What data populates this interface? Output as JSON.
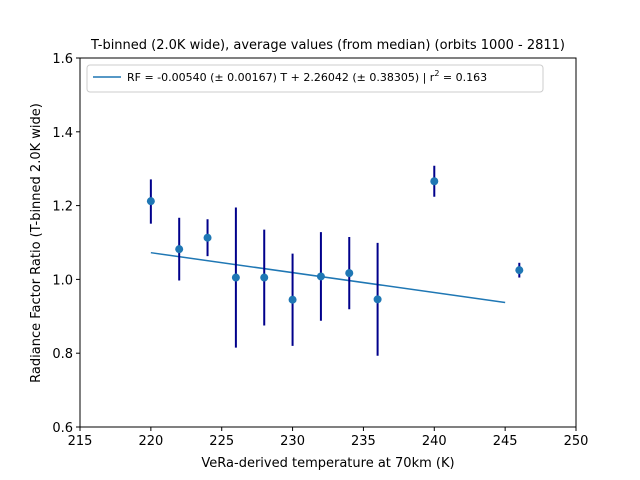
{
  "chart_data": {
    "type": "scatter",
    "title": "T-binned (2.0K wide), average values (from median) (orbits 1000 - 2811)",
    "xlabel": "VeRa-derived temperature at 70km (K)",
    "ylabel": "Radiance Factor Ratio (T-binned 2.0K wide)",
    "xlim": [
      215,
      250
    ],
    "ylim": [
      0.6,
      1.6
    ],
    "xticks": [
      215,
      220,
      225,
      230,
      235,
      240,
      245,
      250
    ],
    "yticks": [
      0.6,
      0.8,
      1.0,
      1.2,
      1.4,
      1.6
    ],
    "xtick_labels": [
      "215",
      "220",
      "225",
      "230",
      "235",
      "240",
      "245",
      "250"
    ],
    "ytick_labels": [
      "0.6",
      "0.8",
      "1.0",
      "1.2",
      "1.4",
      "1.6"
    ],
    "grid": false,
    "legend_position": "top-left",
    "legend": {
      "prefix": "RF = -0.00540 (± 0.00167) T + 2.26042 (± 0.38305) | r",
      "superscript": "2",
      "suffix": " = 0.163"
    },
    "points": [
      {
        "x": 220,
        "y": 1.212,
        "ylow": 1.151,
        "yhigh": 1.271
      },
      {
        "x": 222,
        "y": 1.082,
        "ylow": 0.997,
        "yhigh": 1.167
      },
      {
        "x": 224,
        "y": 1.113,
        "ylow": 1.063,
        "yhigh": 1.163
      },
      {
        "x": 226,
        "y": 1.005,
        "ylow": 0.815,
        "yhigh": 1.195
      },
      {
        "x": 228,
        "y": 1.005,
        "ylow": 0.875,
        "yhigh": 1.135
      },
      {
        "x": 230,
        "y": 0.945,
        "ylow": 0.82,
        "yhigh": 1.07
      },
      {
        "x": 232,
        "y": 1.008,
        "ylow": 0.888,
        "yhigh": 1.128
      },
      {
        "x": 234,
        "y": 1.017,
        "ylow": 0.919,
        "yhigh": 1.115
      },
      {
        "x": 236,
        "y": 0.946,
        "ylow": 0.793,
        "yhigh": 1.099
      },
      {
        "x": 240,
        "y": 1.266,
        "ylow": 1.224,
        "yhigh": 1.308
      },
      {
        "x": 246,
        "y": 1.025,
        "ylow": 1.005,
        "yhigh": 1.045
      }
    ],
    "fit_line": {
      "x": [
        220,
        245
      ],
      "y": [
        1.0724,
        0.9374
      ]
    },
    "colors": {
      "points": "#1f77b4",
      "errorbars": "#00008b",
      "fit_line": "#1f77b4",
      "legend_border": "#cccccc"
    }
  }
}
